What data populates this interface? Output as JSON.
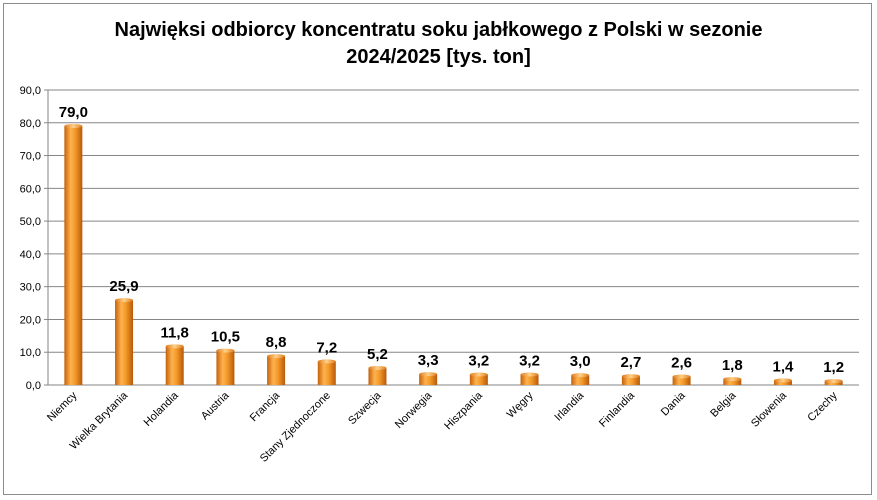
{
  "chart_data": {
    "type": "bar",
    "title_line1": "Najwięksi odbiorcy koncentratu soku jabłkowego z Polski w sezonie",
    "title_line2": "2024/2025 [tys. ton]",
    "xlabel": "",
    "ylabel": "",
    "ylim": [
      0,
      90
    ],
    "yticks": [
      "0,0",
      "10,0",
      "20,0",
      "30,0",
      "40,0",
      "50,0",
      "60,0",
      "70,0",
      "80,0",
      "90,0"
    ],
    "grid": true,
    "legend": "none",
    "bar_color": "#f08a1c",
    "categories": [
      "Niemcy",
      "Wielka Brytania",
      "Holandia",
      "Austria",
      "Francja",
      "Stany Zjednoczone",
      "Szwecja",
      "Norwegia",
      "Hiszpania",
      "Węgry",
      "Irlandia",
      "Finlandia",
      "Dania",
      "Belgia",
      "Słowenia",
      "Czechy"
    ],
    "values": [
      79.0,
      25.9,
      11.8,
      10.5,
      8.8,
      7.2,
      5.2,
      3.3,
      3.2,
      3.2,
      3.0,
      2.7,
      2.6,
      1.8,
      1.4,
      1.2
    ],
    "data_labels": [
      "79,0",
      "25,9",
      "11,8",
      "10,5",
      "8,8",
      "7,2",
      "5,2",
      "3,3",
      "3,2",
      "3,2",
      "3,0",
      "2,7",
      "2,6",
      "1,8",
      "1,4",
      "1,2"
    ]
  }
}
